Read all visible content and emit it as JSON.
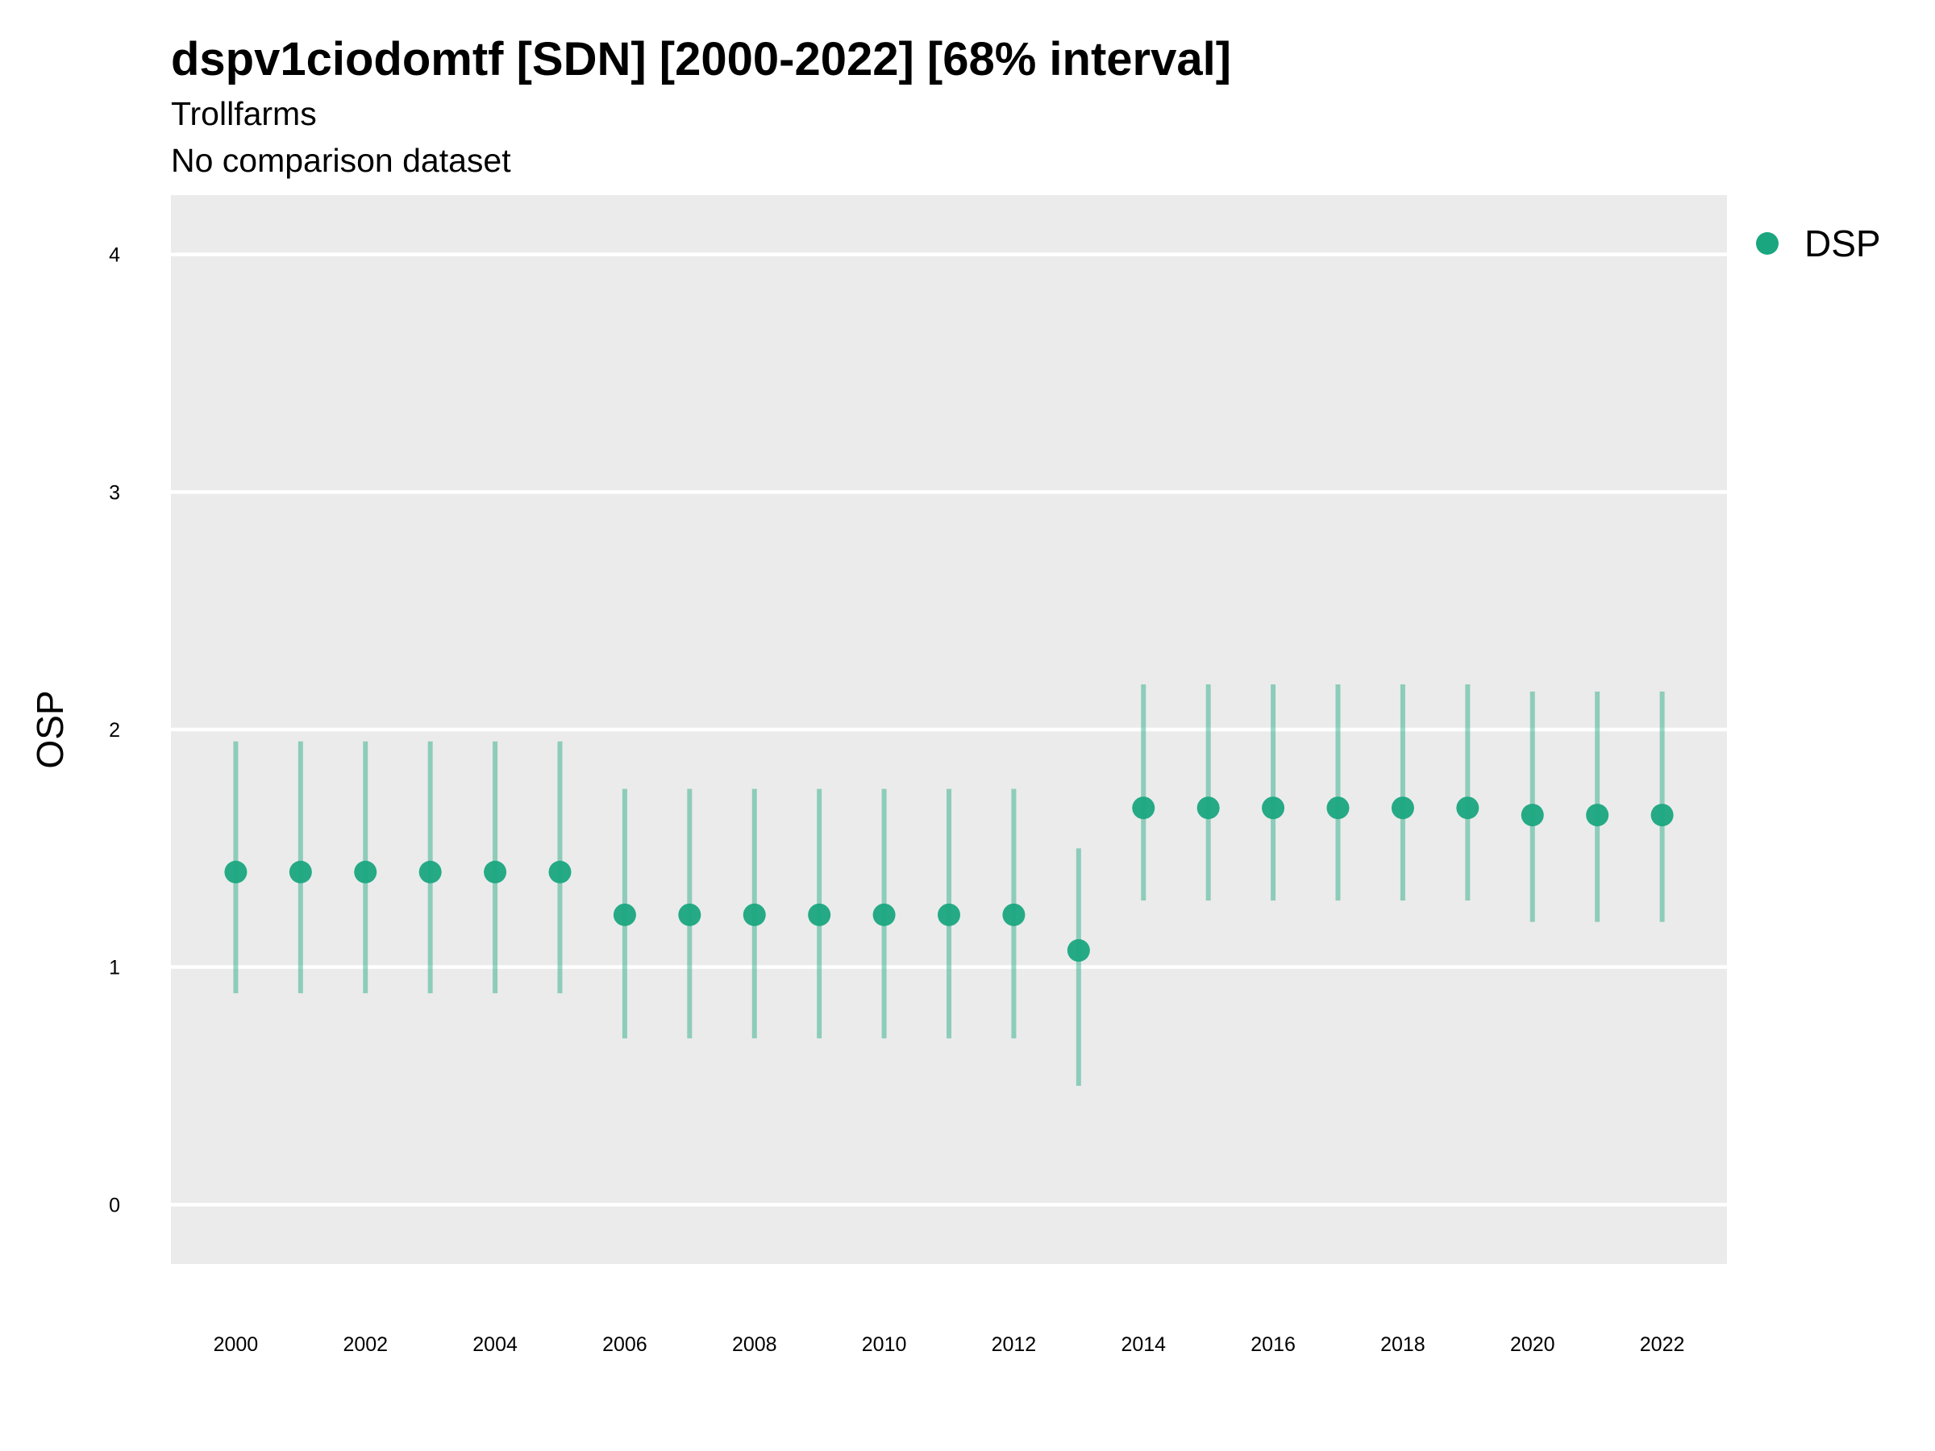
{
  "chart_data": {
    "type": "scatter",
    "title": "dspv1ciodomtf [SDN] [2000-2022] [68% interval]",
    "subtitle_lines": [
      "Trollfarms",
      "No comparison dataset"
    ],
    "xlabel": "",
    "ylabel": "OSP",
    "xlim": [
      1999,
      2023
    ],
    "ylim": [
      -0.25,
      4.25
    ],
    "x_ticks": [
      2000,
      2002,
      2004,
      2006,
      2008,
      2010,
      2012,
      2014,
      2016,
      2018,
      2020,
      2022
    ],
    "y_ticks": [
      0,
      1,
      2,
      3,
      4
    ],
    "grid": true,
    "legend_position": "right",
    "series": [
      {
        "name": "DSP",
        "color": "#1aa67f",
        "x": [
          2000,
          2001,
          2002,
          2003,
          2004,
          2005,
          2006,
          2007,
          2008,
          2009,
          2010,
          2011,
          2012,
          2013,
          2014,
          2015,
          2016,
          2017,
          2018,
          2019,
          2020,
          2021,
          2022
        ],
        "y": [
          1.4,
          1.4,
          1.4,
          1.4,
          1.4,
          1.4,
          1.22,
          1.22,
          1.22,
          1.22,
          1.22,
          1.22,
          1.22,
          1.07,
          1.67,
          1.67,
          1.67,
          1.67,
          1.67,
          1.67,
          1.64,
          1.64,
          1.64
        ],
        "lower": [
          0.89,
          0.89,
          0.89,
          0.89,
          0.89,
          0.89,
          0.7,
          0.7,
          0.7,
          0.7,
          0.7,
          0.7,
          0.7,
          0.5,
          1.28,
          1.28,
          1.28,
          1.28,
          1.28,
          1.28,
          1.19,
          1.19,
          1.19
        ],
        "upper": [
          1.95,
          1.95,
          1.95,
          1.95,
          1.95,
          1.95,
          1.75,
          1.75,
          1.75,
          1.75,
          1.75,
          1.75,
          1.75,
          1.5,
          2.19,
          2.19,
          2.19,
          2.19,
          2.19,
          2.19,
          2.16,
          2.16,
          2.16
        ]
      }
    ]
  }
}
